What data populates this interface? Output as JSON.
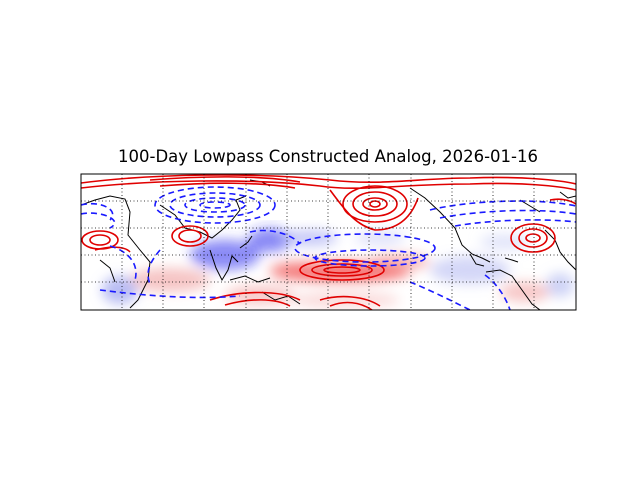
{
  "figure": {
    "title": "100-Day Lowpass Constructed Analog, 2026-01-16"
  },
  "map": {
    "projection": "cylindrical (tropical band)",
    "shading": "red positive / blue negative anomalies",
    "contours": {
      "positive": {
        "color": "#e00000",
        "style": "solid"
      },
      "negative": {
        "color": "#1a1aff",
        "style": "dashed"
      }
    },
    "coastline_color": "#000000",
    "gridlines": "dotted black",
    "colors": {
      "positive": "#e00000",
      "negative": "#1a1aff",
      "frame": "#000000"
    }
  }
}
